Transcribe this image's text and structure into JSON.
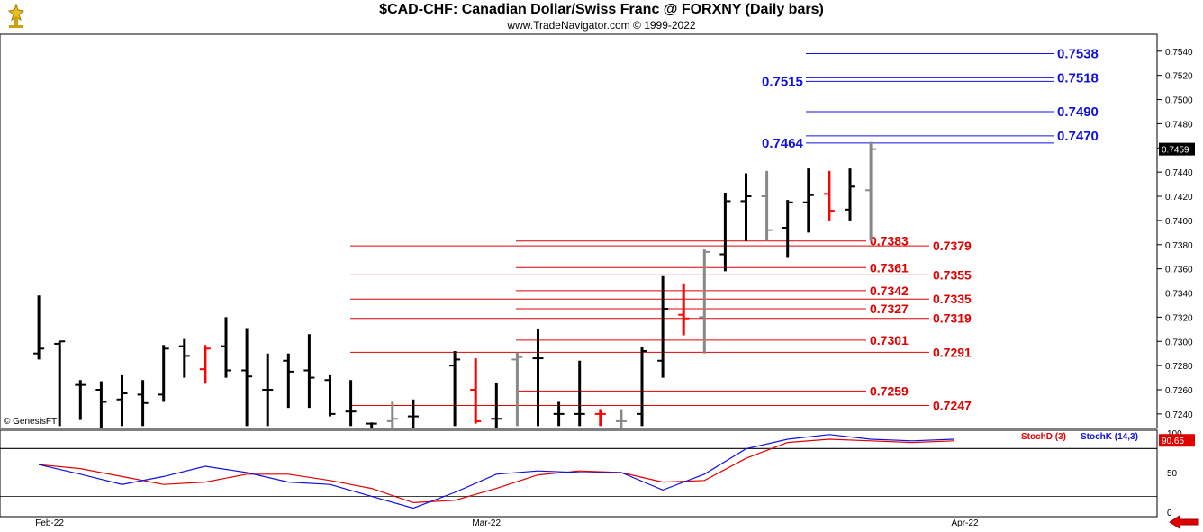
{
  "header": {
    "title": "$CAD-CHF:  Canadian Dollar/Swiss Franc @ FORXNY  (Daily bars)",
    "subtitle": "www.TradeNavigator.com © 1999-2022",
    "watermark": "© GenesisFT"
  },
  "colors": {
    "up": "#000000",
    "down": "#ff0000",
    "neutral": "#888888",
    "blue": "#1010e0",
    "red": "#e00000",
    "stochD": "#e00000",
    "stochK": "#1010e0"
  },
  "chart_data": [
    {
      "type": "ohlc",
      "ylim": [
        0.7228,
        0.7554
      ],
      "yticks": [
        "0.7240",
        "0.7260",
        "0.7280",
        "0.7300",
        "0.7320",
        "0.7340",
        "0.7360",
        "0.7380",
        "0.7400",
        "0.7420",
        "0.7440",
        "0.7460",
        "0.7480",
        "0.7500",
        "0.7520",
        "0.7540"
      ],
      "last_price": "0.7459",
      "x_labels": [
        {
          "label": "Feb-22",
          "x": 1
        },
        {
          "label": "Mar-22",
          "x": 22
        },
        {
          "label": "Apr-22",
          "x": 45
        }
      ],
      "x_range": [
        0,
        56
      ],
      "bars": [
        {
          "x": 1,
          "o": 0.729,
          "h": 0.7338,
          "l": 0.7285,
          "c": 0.7294,
          "color": "up"
        },
        {
          "x": 2,
          "o": 0.7298,
          "h": 0.73,
          "l": 0.723,
          "c": 0.73,
          "color": "up"
        },
        {
          "x": 3,
          "o": 0.7264,
          "h": 0.7268,
          "l": 0.7235,
          "c": 0.7264,
          "color": "up"
        },
        {
          "x": 4,
          "o": 0.726,
          "h": 0.7267,
          "l": 0.7226,
          "c": 0.725,
          "color": "up"
        },
        {
          "x": 5,
          "o": 0.7252,
          "h": 0.7272,
          "l": 0.723,
          "c": 0.7257,
          "color": "up"
        },
        {
          "x": 6,
          "o": 0.7256,
          "h": 0.7268,
          "l": 0.723,
          "c": 0.7249,
          "color": "up"
        },
        {
          "x": 7,
          "o": 0.7256,
          "h": 0.7297,
          "l": 0.725,
          "c": 0.7294,
          "color": "up"
        },
        {
          "x": 8,
          "o": 0.7296,
          "h": 0.7302,
          "l": 0.727,
          "c": 0.7288,
          "color": "up"
        },
        {
          "x": 9,
          "o": 0.7277,
          "h": 0.7297,
          "l": 0.7265,
          "c": 0.7294,
          "color": "down"
        },
        {
          "x": 10,
          "o": 0.7296,
          "h": 0.732,
          "l": 0.727,
          "c": 0.7276,
          "color": "up"
        },
        {
          "x": 11,
          "o": 0.7276,
          "h": 0.7311,
          "l": 0.723,
          "c": 0.7271,
          "color": "up"
        },
        {
          "x": 12,
          "o": 0.726,
          "h": 0.729,
          "l": 0.723,
          "c": 0.726,
          "color": "up"
        },
        {
          "x": 13,
          "o": 0.7284,
          "h": 0.729,
          "l": 0.7245,
          "c": 0.7275,
          "color": "up"
        },
        {
          "x": 14,
          "o": 0.7276,
          "h": 0.7306,
          "l": 0.7245,
          "c": 0.727,
          "color": "up"
        },
        {
          "x": 15,
          "o": 0.7268,
          "h": 0.7272,
          "l": 0.7238,
          "c": 0.724,
          "color": "up"
        },
        {
          "x": 16,
          "o": 0.7242,
          "h": 0.7268,
          "l": 0.723,
          "c": 0.7242,
          "color": "up"
        },
        {
          "x": 17,
          "o": 0.7232,
          "h": 0.7233,
          "l": 0.7225,
          "c": 0.7232,
          "color": "up"
        },
        {
          "x": 18,
          "o": 0.7234,
          "h": 0.725,
          "l": 0.7225,
          "c": 0.7236,
          "color": "neutral"
        },
        {
          "x": 19,
          "o": 0.7238,
          "h": 0.7252,
          "l": 0.7228,
          "c": 0.7238,
          "color": "up"
        },
        {
          "x": 21,
          "o": 0.728,
          "h": 0.7292,
          "l": 0.723,
          "c": 0.7285,
          "color": "up"
        },
        {
          "x": 22,
          "o": 0.726,
          "h": 0.7286,
          "l": 0.7232,
          "c": 0.7234,
          "color": "down"
        },
        {
          "x": 23,
          "o": 0.7236,
          "h": 0.7266,
          "l": 0.7228,
          "c": 0.7236,
          "color": "up"
        },
        {
          "x": 24,
          "o": 0.7285,
          "h": 0.7291,
          "l": 0.723,
          "c": 0.7287,
          "color": "neutral"
        },
        {
          "x": 25,
          "o": 0.7286,
          "h": 0.731,
          "l": 0.723,
          "c": 0.7286,
          "color": "up"
        },
        {
          "x": 26,
          "o": 0.724,
          "h": 0.725,
          "l": 0.723,
          "c": 0.724,
          "color": "up"
        },
        {
          "x": 27,
          "o": 0.724,
          "h": 0.7284,
          "l": 0.723,
          "c": 0.724,
          "color": "up"
        },
        {
          "x": 28,
          "o": 0.724,
          "h": 0.7244,
          "l": 0.723,
          "c": 0.724,
          "color": "down"
        },
        {
          "x": 29,
          "o": 0.7234,
          "h": 0.7244,
          "l": 0.7228,
          "c": 0.7234,
          "color": "neutral"
        },
        {
          "x": 30,
          "o": 0.724,
          "h": 0.7295,
          "l": 0.723,
          "c": 0.7292,
          "color": "up"
        },
        {
          "x": 31,
          "o": 0.7284,
          "h": 0.7354,
          "l": 0.727,
          "c": 0.7327,
          "color": "up"
        },
        {
          "x": 32,
          "o": 0.7322,
          "h": 0.7348,
          "l": 0.7305,
          "c": 0.7319,
          "color": "down"
        },
        {
          "x": 33,
          "o": 0.732,
          "h": 0.7376,
          "l": 0.729,
          "c": 0.7374,
          "color": "neutral"
        },
        {
          "x": 34,
          "o": 0.7372,
          "h": 0.7423,
          "l": 0.7358,
          "c": 0.7416,
          "color": "up"
        },
        {
          "x": 35,
          "o": 0.7416,
          "h": 0.7439,
          "l": 0.7383,
          "c": 0.742,
          "color": "up"
        },
        {
          "x": 36,
          "o": 0.742,
          "h": 0.7441,
          "l": 0.7383,
          "c": 0.7392,
          "color": "neutral"
        },
        {
          "x": 37,
          "o": 0.7394,
          "h": 0.7417,
          "l": 0.7369,
          "c": 0.7415,
          "color": "up"
        },
        {
          "x": 38,
          "o": 0.7415,
          "h": 0.7443,
          "l": 0.739,
          "c": 0.7421,
          "color": "up"
        },
        {
          "x": 39,
          "o": 0.7422,
          "h": 0.7441,
          "l": 0.74,
          "c": 0.7408,
          "color": "down"
        },
        {
          "x": 40,
          "o": 0.7409,
          "h": 0.7443,
          "l": 0.74,
          "c": 0.7428,
          "color": "up"
        },
        {
          "x": 41,
          "o": 0.7425,
          "h": 0.7465,
          "l": 0.7383,
          "c": 0.7459,
          "color": "neutral"
        }
      ],
      "levels_blue": [
        {
          "label": "0.7538",
          "value": 0.7538,
          "label_side": "right"
        },
        {
          "label": "0.7518",
          "value": 0.7518,
          "label_side": "right"
        },
        {
          "label": "0.7515",
          "value": 0.7515,
          "label_side": "left"
        },
        {
          "label": "0.7490",
          "value": 0.749,
          "label_side": "right"
        },
        {
          "label": "0.7470",
          "value": 0.747,
          "label_side": "right"
        },
        {
          "label": "0.7464",
          "value": 0.7464,
          "label_side": "left"
        }
      ],
      "levels_red_short": [
        {
          "label": "0.7383",
          "value": 0.7383
        },
        {
          "label": "0.7361",
          "value": 0.7361
        },
        {
          "label": "0.7342",
          "value": 0.7342
        },
        {
          "label": "0.7327",
          "value": 0.7327
        },
        {
          "label": "0.7301",
          "value": 0.7301
        },
        {
          "label": "0.7259",
          "value": 0.7259
        }
      ],
      "levels_red_long": [
        {
          "label": "0.7379",
          "value": 0.7379
        },
        {
          "label": "0.7355",
          "value": 0.7355
        },
        {
          "label": "0.7335",
          "value": 0.7335
        },
        {
          "label": "0.7319",
          "value": 0.7319
        },
        {
          "label": "0.7291",
          "value": 0.7291
        },
        {
          "label": "0.7247",
          "value": 0.7247
        }
      ]
    },
    {
      "type": "line",
      "ylim": [
        0,
        100
      ],
      "yticks": [
        "0",
        "50",
        "100"
      ],
      "last_value": "90.65",
      "bands": [
        20,
        80
      ],
      "series": [
        {
          "name": "StochD (3)",
          "color": "stochD",
          "values": [
            [
              1,
              60
            ],
            [
              3,
              55
            ],
            [
              5,
              45
            ],
            [
              7,
              35
            ],
            [
              9,
              38
            ],
            [
              11,
              48
            ],
            [
              13,
              48
            ],
            [
              15,
              40
            ],
            [
              17,
              30
            ],
            [
              19,
              12
            ],
            [
              21,
              15
            ],
            [
              23,
              30
            ],
            [
              25,
              47
            ],
            [
              27,
              52
            ],
            [
              29,
              50
            ],
            [
              31,
              38
            ],
            [
              33,
              40
            ],
            [
              35,
              68
            ],
            [
              37,
              88
            ],
            [
              39,
              92
            ],
            [
              41,
              90
            ],
            [
              43,
              88
            ],
            [
              45,
              90
            ]
          ]
        },
        {
          "name": "StochK (14,3)",
          "color": "stochK",
          "values": [
            [
              1,
              60
            ],
            [
              3,
              48
            ],
            [
              5,
              35
            ],
            [
              7,
              45
            ],
            [
              9,
              58
            ],
            [
              11,
              50
            ],
            [
              13,
              38
            ],
            [
              15,
              35
            ],
            [
              17,
              20
            ],
            [
              19,
              5
            ],
            [
              21,
              25
            ],
            [
              23,
              48
            ],
            [
              25,
              52
            ],
            [
              27,
              50
            ],
            [
              29,
              50
            ],
            [
              31,
              28
            ],
            [
              33,
              48
            ],
            [
              35,
              80
            ],
            [
              37,
              92
            ],
            [
              39,
              98
            ],
            [
              41,
              92
            ],
            [
              43,
              90
            ],
            [
              45,
              92
            ]
          ]
        }
      ]
    }
  ]
}
